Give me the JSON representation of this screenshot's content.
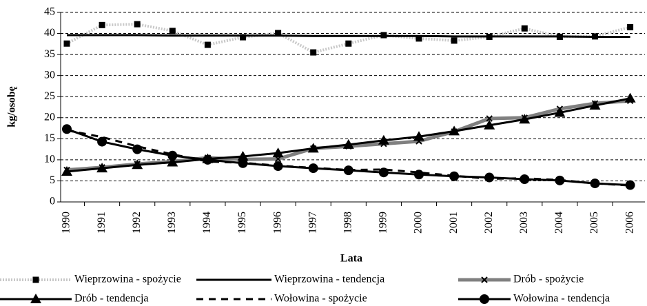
{
  "chart_data": {
    "type": "line",
    "y_label": "kg/osobę",
    "x_label": "Lata",
    "categories": [
      "1990",
      "1991",
      "1992",
      "1993",
      "1994",
      "1995",
      "1996",
      "1997",
      "1998",
      "1999",
      "2000",
      "2001",
      "2002",
      "2003",
      "2004",
      "2005",
      "2006"
    ],
    "series": [
      {
        "name": "Wieprzowina - spożycie",
        "color": "#c8c8c8",
        "line_style": "dotted",
        "marker": "square",
        "values": [
          37.6,
          42.0,
          42.2,
          40.6,
          37.3,
          39.1,
          40.1,
          35.5,
          37.6,
          39.6,
          38.8,
          38.3,
          39.2,
          41.2,
          39.2,
          39.3,
          41.5
        ]
      },
      {
        "name": "Wieprzowina - tendencja",
        "color": "#000000",
        "line_style": "solid",
        "marker": "none",
        "values": [
          39.6,
          39.6,
          39.6,
          39.5,
          39.5,
          39.5,
          39.5,
          39.4,
          39.4,
          39.4,
          39.4,
          39.3,
          39.3,
          39.3,
          39.3,
          39.2,
          39.2
        ]
      },
      {
        "name": "Drób - spożycie",
        "color": "#808080",
        "line_style": "thick",
        "marker": "cross",
        "values": [
          7.6,
          8.2,
          9.0,
          9.6,
          10.5,
          10.1,
          10.2,
          12.7,
          13.2,
          13.8,
          14.4,
          16.7,
          19.8,
          20.0,
          22.1,
          23.4,
          24.0
        ]
      },
      {
        "name": "Drób - tendencja",
        "color": "#000000",
        "line_style": "solid",
        "marker": "triangle",
        "values": [
          7.2,
          8.0,
          8.8,
          9.4,
          10.2,
          10.8,
          11.6,
          12.7,
          13.6,
          14.6,
          15.5,
          16.8,
          18.2,
          19.6,
          21.2,
          22.9,
          24.6
        ]
      },
      {
        "name": "Wołowina - spożycie",
        "color": "#000000",
        "line_style": "dashed",
        "marker": "none",
        "values": [
          17.0,
          15.4,
          13.2,
          11.3,
          9.6,
          9.3,
          8.6,
          8.1,
          7.6,
          7.7,
          7.0,
          6.2,
          5.5,
          5.6,
          5.2,
          4.4,
          3.9
        ]
      },
      {
        "name": "Wołowina - tendencja",
        "color": "#000000",
        "line_style": "solid",
        "marker": "circle",
        "values": [
          17.3,
          14.3,
          12.5,
          11.0,
          10.0,
          9.2,
          8.5,
          8.0,
          7.5,
          7.0,
          6.5,
          6.1,
          5.8,
          5.4,
          5.1,
          4.4,
          4.0
        ]
      }
    ],
    "ylim": [
      0,
      45
    ],
    "yticks": [
      0,
      5,
      10,
      15,
      20,
      25,
      30,
      35,
      40,
      45
    ],
    "grid": true
  }
}
